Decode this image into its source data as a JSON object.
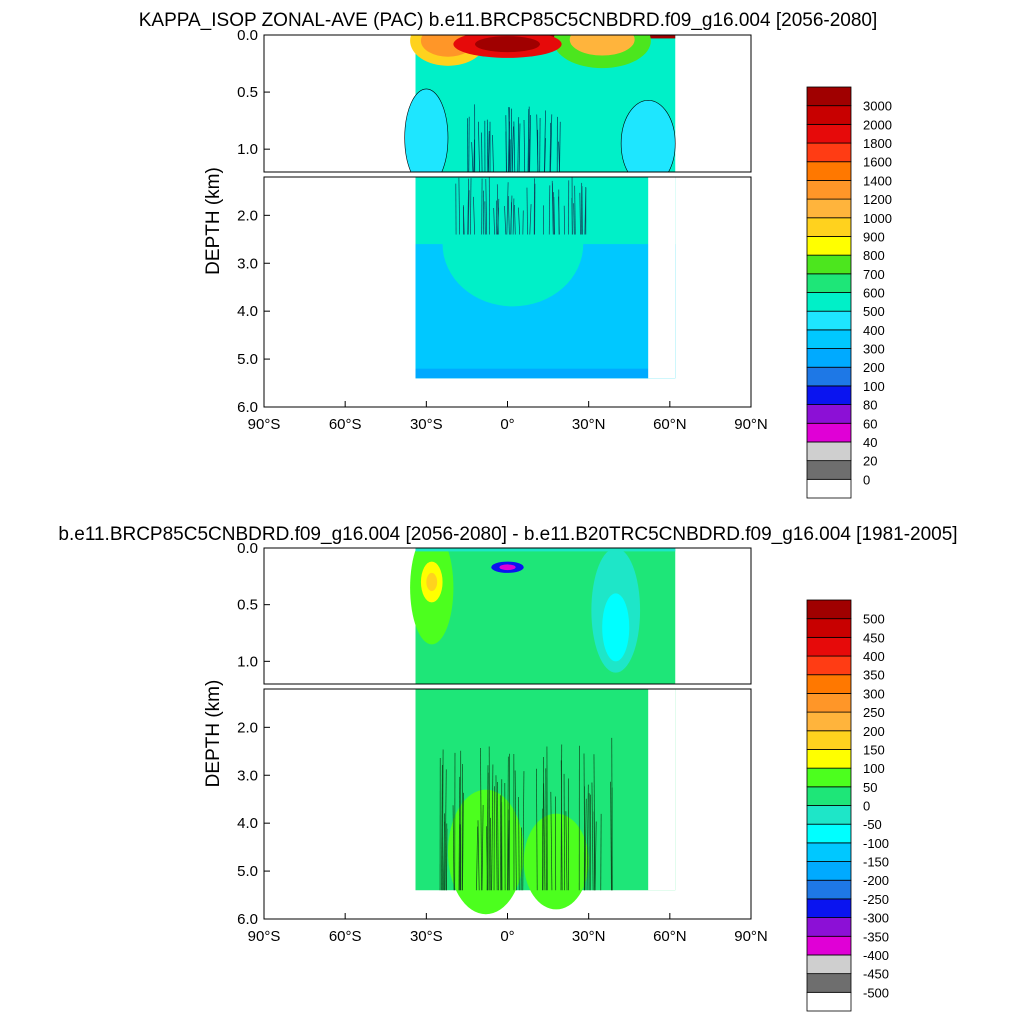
{
  "chart_data": [
    {
      "type": "heatmap",
      "title": "KAPPA_ISOP ZONAL-AVE (PAC) b.e11.BRCP85C5CNBDRD.f09_g16.004 [2056-2080]",
      "ylabel": "DEPTH (km)",
      "xlabel": "",
      "x_tick_labels": [
        "90°S",
        "60°S",
        "30°S",
        "0°",
        "30°N",
        "60°N",
        "90°N"
      ],
      "x_range": [
        -90,
        90
      ],
      "upper_panel": {
        "ylim": [
          0,
          1.2
        ],
        "y_ticks": [
          0,
          0.5,
          1.0
        ],
        "y_tick_labels": [
          "0.0",
          "0.5",
          "1.0"
        ]
      },
      "lower_panel": {
        "ylim": [
          1.2,
          6.0
        ],
        "y_ticks": [
          2,
          3,
          4,
          5,
          6
        ],
        "y_tick_labels": [
          "2.0",
          "3.0",
          "4.0",
          "5.0",
          "6.0"
        ]
      },
      "data_extent": {
        "lat": [
          -34,
          62
        ],
        "max_depth_km": 5.4
      },
      "colorbar": {
        "labels": [
          "0",
          "20",
          "40",
          "60",
          "80",
          "100",
          "200",
          "300",
          "400",
          "500",
          "600",
          "700",
          "800",
          "900",
          "1000",
          "1200",
          "1400",
          "1600",
          "1800",
          "2000",
          "3000"
        ],
        "colors": [
          "#ffffff",
          "#6e6e6e",
          "#cfcfcf",
          "#e000d6",
          "#8c10d6",
          "#0a14f0",
          "#1e78e6",
          "#00aaff",
          "#00c8ff",
          "#1ee6ff",
          "#00f0c8",
          "#1ee678",
          "#4ce61e",
          "#ffff00",
          "#ffd21e",
          "#ffb43c",
          "#ff9628",
          "#ff7800",
          "#ff3c14",
          "#e60a0a",
          "#c80000",
          "#a00000"
        ]
      },
      "field": {
        "surface_max_band": "3000",
        "upper_ocean_dominant": "500",
        "deep_ocean_dominant": "300",
        "bottom_layer": "200",
        "subtropical_gyres": [
          "600",
          "700",
          "800",
          "900",
          "1000",
          "1200",
          "1400"
        ],
        "equatorial_core": [
          "1800",
          "2000",
          "3000"
        ]
      }
    },
    {
      "type": "heatmap",
      "title": "b.e11.BRCP85C5CNBDRD.f09_g16.004 [2056-2080] - b.e11.B20TRC5CNBDRD.f09_g16.004 [1981-2005]",
      "ylabel": "DEPTH (km)",
      "xlabel": "",
      "x_tick_labels": [
        "90°S",
        "60°S",
        "30°S",
        "0°",
        "30°N",
        "60°N",
        "90°N"
      ],
      "x_range": [
        -90,
        90
      ],
      "upper_panel": {
        "ylim": [
          0,
          1.2
        ],
        "y_ticks": [
          0,
          0.5,
          1.0
        ],
        "y_tick_labels": [
          "0.0",
          "0.5",
          "1.0"
        ]
      },
      "lower_panel": {
        "ylim": [
          1.2,
          6.0
        ],
        "y_ticks": [
          2,
          3,
          4,
          5,
          6
        ],
        "y_tick_labels": [
          "2.0",
          "3.0",
          "4.0",
          "5.0",
          "6.0"
        ]
      },
      "data_extent": {
        "lat": [
          -34,
          62
        ],
        "max_depth_km": 5.4
      },
      "colorbar": {
        "labels": [
          "-500",
          "-450",
          "-400",
          "-350",
          "-300",
          "-250",
          "-200",
          "-150",
          "-100",
          "-50",
          "0",
          "50",
          "100",
          "150",
          "200",
          "250",
          "300",
          "350",
          "400",
          "450",
          "500"
        ],
        "colors": [
          "#ffffff",
          "#6e6e6e",
          "#cfcfcf",
          "#e000d6",
          "#8c10d6",
          "#0a14f0",
          "#1e78e6",
          "#00aaff",
          "#00c8ff",
          "#00ffff",
          "#1ee6c8",
          "#1ee678",
          "#4cff1e",
          "#ffff00",
          "#ffd21e",
          "#ffb43c",
          "#ff9628",
          "#ff7800",
          "#ff3c14",
          "#e60a0a",
          "#c80000",
          "#a00000"
        ]
      },
      "field": {
        "dominant": "0",
        "positive_patches": [
          "50",
          "100",
          "150"
        ],
        "negative_patches": [
          "-50",
          "-100"
        ],
        "equatorial_minimum": [
          "-300",
          "-350",
          "-400"
        ]
      }
    }
  ]
}
